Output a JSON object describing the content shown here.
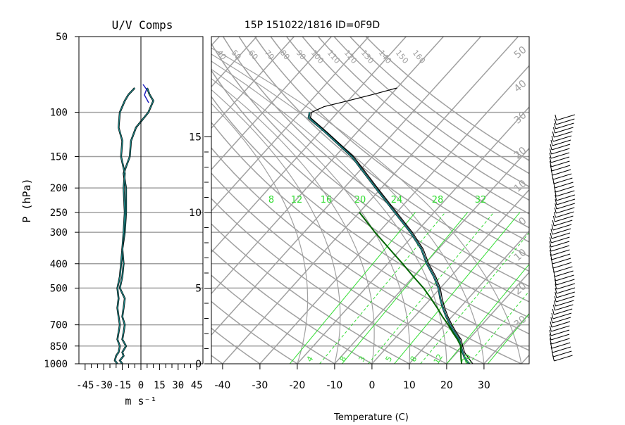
{
  "figure": {
    "title": "15P 151022/1816 ID=0F9D",
    "uv_panel_title": "U/V Comps",
    "pressure_axis_label": "P (hPa)",
    "uv_axis_unit": "m s⁻¹",
    "temperature_axis_label": "Temperature (C)"
  },
  "colors": {
    "grid_gray": "#a0a0a0",
    "profile_black": "#000000",
    "profile_teal": "#1f8f8f",
    "parcel_dark_green": "#006400",
    "mixing_ratio_green": "#33dd33",
    "profile_blue": "#2020c0"
  },
  "chart_data": [
    {
      "type": "line",
      "panel": "uv-components",
      "title": "U/V Comps",
      "xlabel": "m s⁻¹",
      "ylabel": "P (hPa)",
      "y_scale": "log",
      "y_inverted": true,
      "xlim": [
        -50,
        50
      ],
      "ylim": [
        1000,
        50
      ],
      "pressure_ticks": [
        50,
        100,
        150,
        200,
        250,
        300,
        400,
        500,
        700,
        850,
        1000
      ],
      "pressure_tick_labels": [
        "50",
        "100",
        "150",
        "200",
        "250",
        "300",
        "400",
        "500",
        "700",
        "850",
        "1000"
      ],
      "x_tick_labels": [
        "-45",
        "-30",
        "-15",
        "0",
        "15",
        "30",
        "45"
      ],
      "x_ticks": [
        -45,
        -30,
        -15,
        0,
        15,
        30,
        45
      ],
      "series": [
        {
          "pressure": [
            1000,
            970,
            930,
            900,
            850,
            800,
            750,
            700,
            650,
            600,
            550,
            500,
            450,
            400,
            350,
            300,
            250,
            200,
            175,
            150,
            130,
            115,
            100,
            90,
            85,
            80
          ],
          "values": [
            -15,
            -17,
            -14,
            -15,
            -12,
            -15,
            -14,
            -13,
            -15,
            -14,
            -13,
            -17,
            -15,
            -14,
            -15,
            -13,
            -12,
            -12,
            -14,
            -9,
            -8,
            -4,
            6,
            10,
            7,
            5
          ]
        },
        {
          "pressure": [
            1000,
            970,
            930,
            900,
            850,
            800,
            750,
            700,
            650,
            600,
            550,
            500,
            450,
            400,
            350,
            300,
            250,
            200,
            175,
            150,
            130,
            115,
            100,
            90,
            85,
            80
          ],
          "values": [
            -19,
            -21,
            -20,
            -18,
            -17,
            -19,
            -18,
            -17,
            -18,
            -19,
            -18,
            -19,
            -17,
            -16,
            -15,
            -14,
            -13,
            -14,
            -13,
            -16,
            -15,
            -18,
            -17,
            -13,
            -10,
            -5
          ]
        }
      ]
    },
    {
      "type": "line",
      "panel": "skew-t",
      "title": "15P 151022/1816 ID=0F9D",
      "xlabel": "Temperature (C)",
      "ylabel": "",
      "x_tick_labels": [
        "-40",
        "-30",
        "-20",
        "-10",
        "0",
        "10",
        "20",
        "30"
      ],
      "x_ticks": [
        -40,
        -30,
        -20,
        -10,
        0,
        10,
        20,
        30
      ],
      "height_km_ticks": [
        0,
        5,
        10,
        15
      ],
      "height_km_tick_labels": [
        "0",
        "5",
        "10",
        "15"
      ],
      "dry_adiabat_labels": [
        "40",
        "50",
        "60",
        "70",
        "80",
        "90",
        "100",
        "110",
        "120",
        "130",
        "140",
        "150",
        "160"
      ],
      "moist_adiabat_labels": [
        "50",
        "40",
        "30",
        "20",
        "10",
        "0",
        "10",
        "20",
        "30"
      ],
      "mixing_ratio_top_labels": [
        "8",
        "12",
        "16",
        "20",
        "24",
        "28",
        "32"
      ],
      "mixing_ratio_bottom_labels": [
        "4",
        "8",
        "3",
        "5",
        "8",
        "12",
        "20"
      ],
      "series": [
        {
          "pressure": [
            1000,
            950,
            900,
            850,
            800,
            750,
            700,
            650,
            600,
            550,
            500,
            450,
            400,
            350,
            300,
            250,
            200,
            150,
            120,
            105,
            100,
            95,
            90,
            85,
            80
          ],
          "values": [
            27,
            24.5,
            22,
            20,
            18,
            15,
            12,
            9,
            6,
            3,
            0,
            -4,
            -9,
            -14,
            -21,
            -30,
            -41,
            -55,
            -68,
            -76,
            -77,
            -75,
            -70,
            -65,
            -60
          ]
        },
        {
          "pressure": [
            1000,
            950,
            900,
            850,
            800,
            750,
            700,
            650,
            600,
            550,
            500,
            450,
            400,
            350,
            300,
            250,
            200,
            150,
            120,
            105,
            100
          ],
          "values": [
            26,
            23.5,
            21.5,
            19.5,
            17.5,
            14.5,
            11.5,
            8.5,
            5.5,
            2.5,
            -0.5,
            -4.5,
            -9.5,
            -14.5,
            -21.5,
            -30.5,
            -41.5,
            -55.5,
            -68.5,
            -76.5,
            -77.5
          ]
        },
        {
          "pressure": [
            1000,
            950,
            900,
            850,
            800,
            750,
            700,
            650,
            600,
            550,
            500,
            450,
            400,
            350,
            300,
            250
          ],
          "values": [
            24,
            22.5,
            21,
            19.5,
            17,
            14,
            11,
            7.5,
            4,
            0,
            -4.5,
            -10,
            -16,
            -23,
            -31,
            -40
          ]
        }
      ]
    }
  ]
}
